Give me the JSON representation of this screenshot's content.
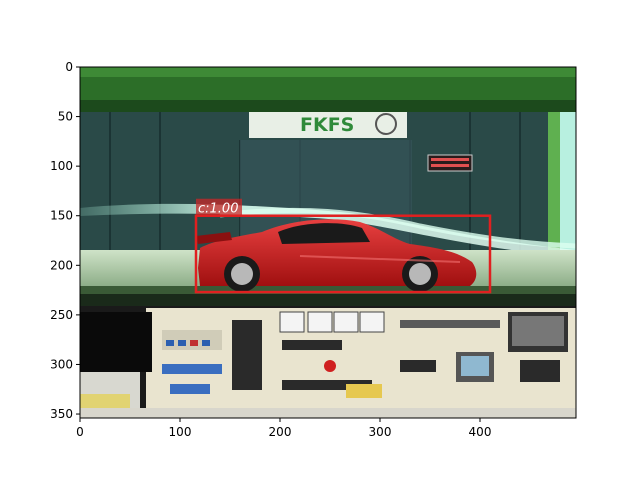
{
  "image": {
    "description_icon": "wind-tunnel-photo",
    "width_units": 496,
    "height_units": 354
  },
  "axes": {
    "x_ticks": [
      "0",
      "100",
      "200",
      "300",
      "400"
    ],
    "y_ticks": [
      "0",
      "50",
      "100",
      "150",
      "200",
      "250",
      "300",
      "350"
    ]
  },
  "scene_text": {
    "sign": "FKFS"
  },
  "detection": {
    "label": "c:1.00",
    "box": {
      "x0": 116,
      "y0": 150,
      "x1": 410,
      "y1": 227
    },
    "color": "#e02020"
  },
  "colors": {
    "tint_green": "#2f7a2a",
    "car_red": "#c81818",
    "panel_cream": "#e9e4cf"
  }
}
